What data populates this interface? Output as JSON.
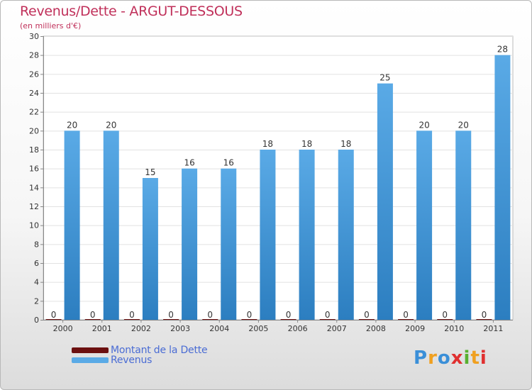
{
  "title": "Revenus/Dette - ARGUT-DESSOUS",
  "subtitle": "(en milliers d'€)",
  "colors": {
    "revenus": "#5aaae6",
    "revenus_dark": "#2c7ec0",
    "dette": "#6b0f0f",
    "text_title": "#c0305a",
    "legend_text": "#4a6cd4"
  },
  "chart_data": {
    "type": "bar",
    "title": "Revenus/Dette - ARGUT-DESSOUS",
    "ylabel": "(en milliers d'€)",
    "xlabel": "",
    "categories": [
      "2000",
      "2001",
      "2002",
      "2003",
      "2004",
      "2005",
      "2006",
      "2007",
      "2008",
      "2009",
      "2010",
      "2011"
    ],
    "series": [
      {
        "name": "Montant de la Dette",
        "values": [
          0,
          0,
          0,
          0,
          0,
          0,
          0,
          0,
          0,
          0,
          0,
          0
        ]
      },
      {
        "name": "Revenus",
        "values": [
          20,
          20,
          15,
          16,
          16,
          18,
          18,
          18,
          25,
          20,
          20,
          28
        ]
      }
    ],
    "ylim": [
      0,
      30
    ],
    "yticks": [
      0,
      2,
      4,
      6,
      8,
      10,
      12,
      14,
      16,
      18,
      20,
      22,
      24,
      26,
      28,
      30
    ],
    "grid": true
  },
  "legend": {
    "items": [
      {
        "label": "Montant de la Dette"
      },
      {
        "label": "Revenus"
      }
    ]
  },
  "logo": {
    "letters": [
      "P",
      "r",
      "o",
      "x",
      "i",
      "t",
      "i"
    ],
    "colors": [
      "#3a8fd8",
      "#f0a020",
      "#3a8fd8",
      "#e03030",
      "#58b030",
      "#f0a020",
      "#e03030"
    ]
  }
}
